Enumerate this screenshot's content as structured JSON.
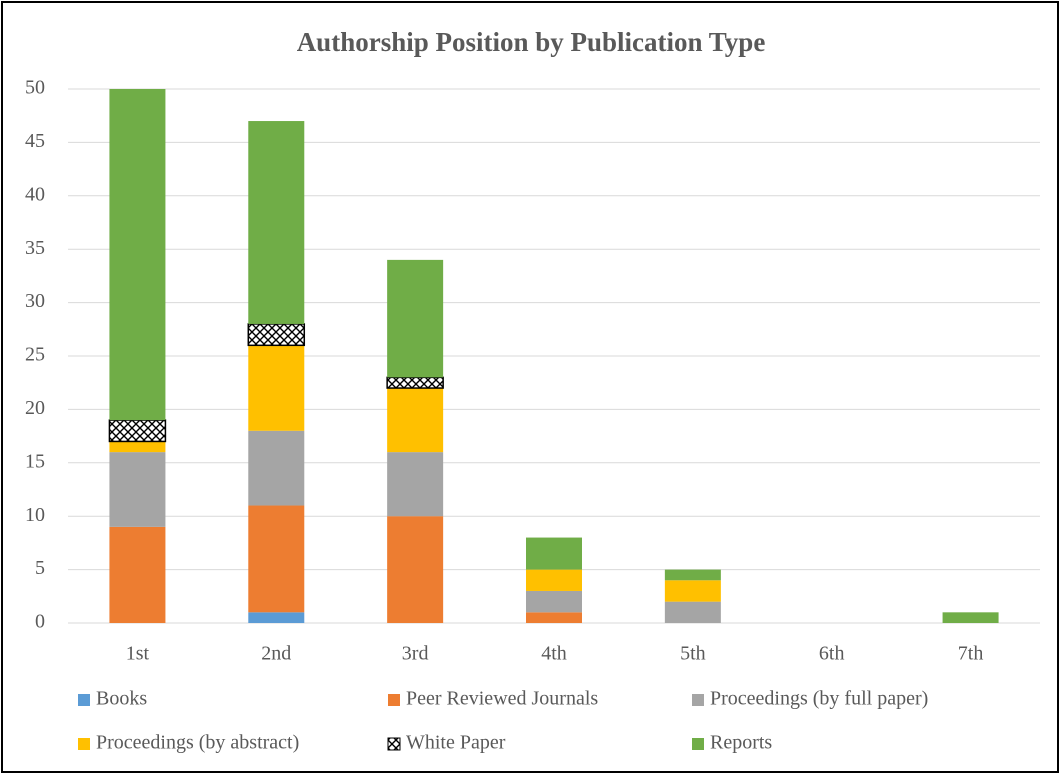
{
  "chart_data": {
    "type": "bar",
    "stacked": true,
    "title": "Authorship Position by Publication Type",
    "categories": [
      "1st",
      "2nd",
      "3rd",
      "4th",
      "5th",
      "6th",
      "7th"
    ],
    "series": [
      {
        "name": "Books",
        "color": "#5b9bd5",
        "values": [
          0,
          1,
          0,
          0,
          0,
          0,
          0
        ]
      },
      {
        "name": "Peer Reviewed Journals",
        "color": "#ed7d31",
        "values": [
          9,
          10,
          10,
          1,
          0,
          0,
          0
        ]
      },
      {
        "name": "Proceedings (by full paper)",
        "color": "#a5a5a5",
        "values": [
          7,
          7,
          6,
          2,
          2,
          0,
          0
        ]
      },
      {
        "name": "Proceedings (by abstract)",
        "color": "#ffc000",
        "values": [
          1,
          8,
          6,
          2,
          2,
          0,
          0
        ]
      },
      {
        "name": "White Paper",
        "color": "#000000",
        "pattern": "crosshatch",
        "values": [
          2,
          2,
          1,
          0,
          0,
          0,
          0
        ]
      },
      {
        "name": "Reports",
        "color": "#70ad47",
        "values": [
          31,
          19,
          11,
          3,
          1,
          0,
          1
        ]
      }
    ],
    "ylim": [
      0,
      50
    ],
    "yticks": [
      0,
      5,
      10,
      15,
      20,
      25,
      30,
      35,
      40,
      45,
      50
    ],
    "grid": true,
    "legend": "bottom"
  }
}
